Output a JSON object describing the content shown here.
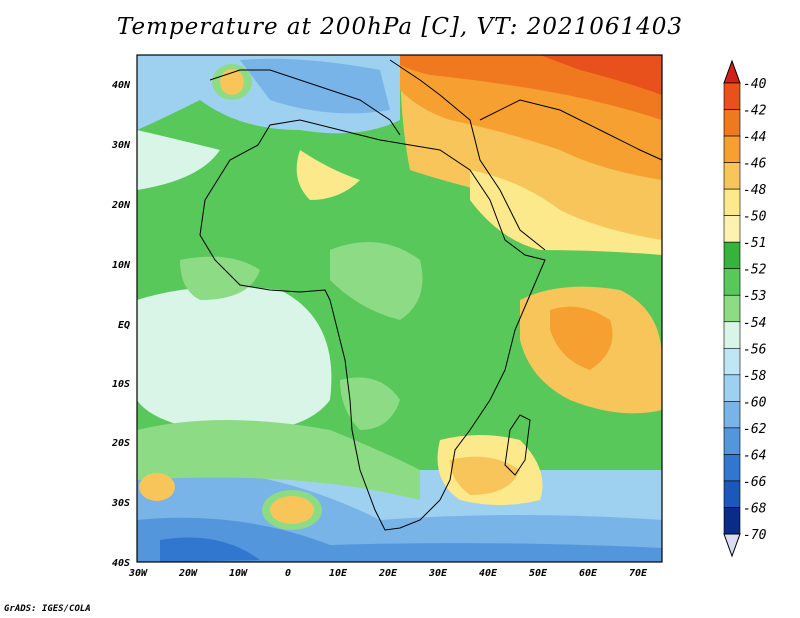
{
  "title": "Temperature at 200hPa [C], VT: 2021061403",
  "credit": "GrADS: IGES/COLA",
  "lat_labels": [
    "40N",
    "30N",
    "20N",
    "10N",
    "EQ",
    "10S",
    "20S",
    "30S",
    "40S"
  ],
  "lon_labels": [
    "30W",
    "20W",
    "10W",
    "0",
    "10E",
    "20E",
    "30E",
    "40E",
    "50E",
    "60E",
    "70E"
  ],
  "colorbar": {
    "labels": [
      "-40",
      "-42",
      "-44",
      "-46",
      "-48",
      "-50",
      "-51",
      "-52",
      "-53",
      "-54",
      "-56",
      "-58",
      "-60",
      "-62",
      "-64",
      "-66",
      "-68",
      "-70"
    ],
    "colors": [
      "#d2201a",
      "#e8501c",
      "#f0781e",
      "#f5a030",
      "#f8c55a",
      "#fce98c",
      "#fff2b0",
      "#36b33a",
      "#58c85a",
      "#8ddc85",
      "#d8f5e8",
      "#bfe6f5",
      "#9ed0f0",
      "#78b4e8",
      "#5496dc",
      "#3277cf",
      "#1c58bc",
      "#0a2b86",
      "#dcdcf5"
    ]
  }
}
